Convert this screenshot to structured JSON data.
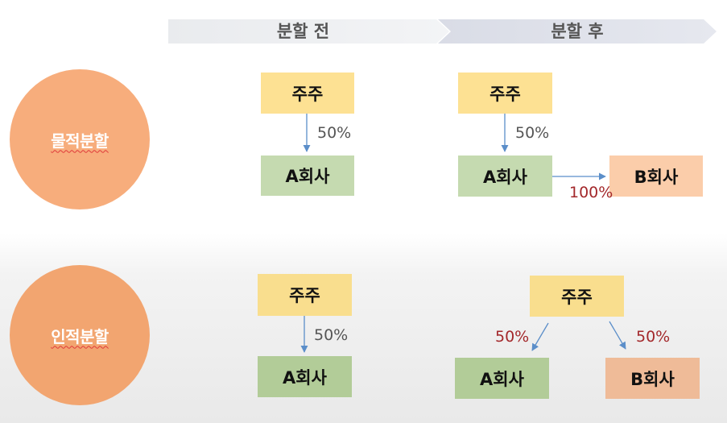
{
  "header": {
    "before_label": "분할 전",
    "after_label": "분할 후"
  },
  "rows": {
    "physical": {
      "label": "물적분할",
      "before": {
        "shareholder": "주주",
        "company_a": "A회사",
        "pct_shareholder_a": "50%"
      },
      "after": {
        "shareholder": "주주",
        "company_a": "A회사",
        "company_b": "B회사",
        "pct_shareholder_a": "50%",
        "pct_a_b": "100%"
      }
    },
    "personal": {
      "label": "인적분할",
      "before": {
        "shareholder": "주주",
        "company_a": "A회사",
        "pct_shareholder_a": "50%"
      },
      "after": {
        "shareholder": "주주",
        "company_a": "A회사",
        "company_b": "B회사",
        "pct_shareholder_a": "50%",
        "pct_shareholder_b": "50%"
      }
    }
  },
  "colors": {
    "shareholder_box": "#fde193",
    "company_a_box": "#c5dab0",
    "company_b_box": "#fbcdaa",
    "circle": "#f7ad7c",
    "arrow": "#5b8ec9",
    "highlight_text": "#a3282b"
  }
}
